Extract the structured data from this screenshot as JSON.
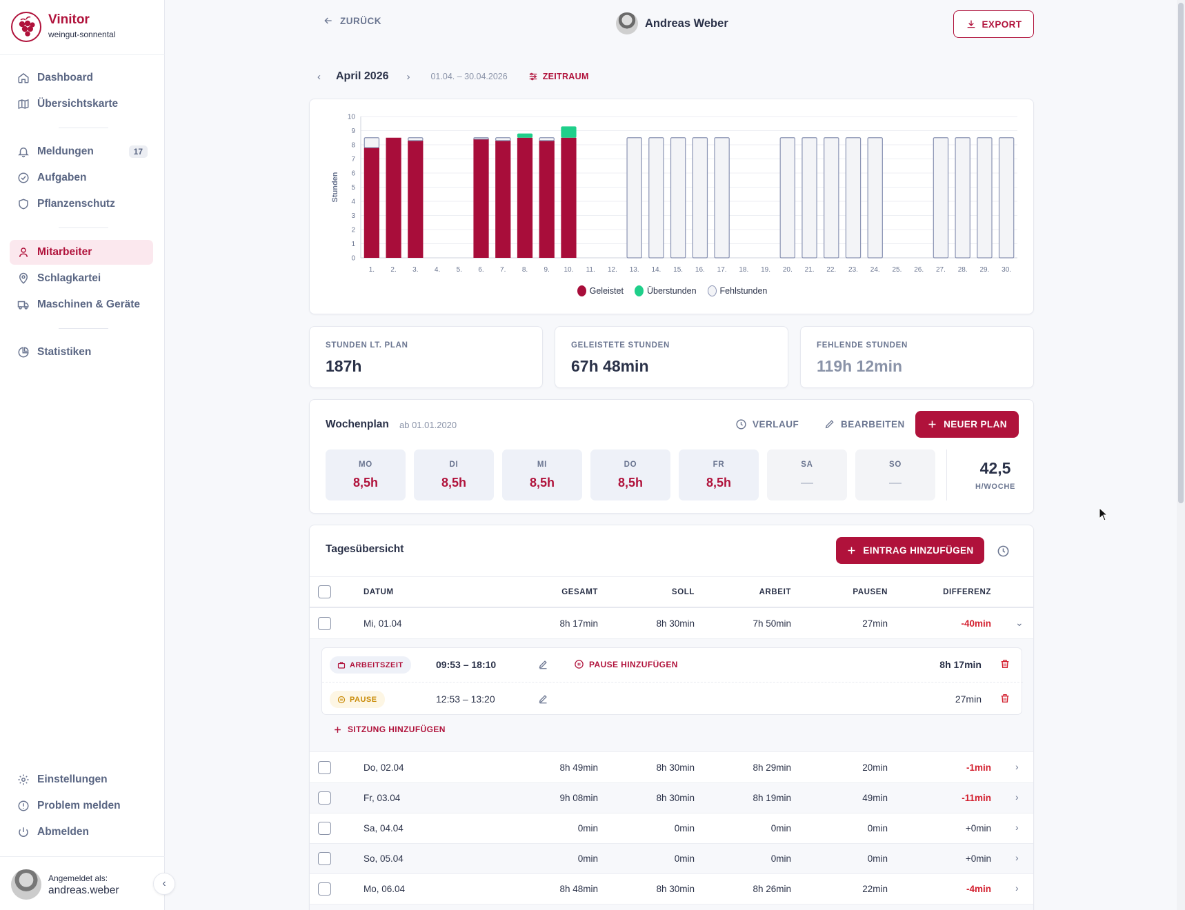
{
  "app": {
    "name": "Vinitor",
    "tenant": "weingut-sonnental"
  },
  "colors": {
    "brand": "#b0123b",
    "worked": "#a80d3a",
    "overtime": "#1fcf8a",
    "missing_fill": "#f3f4f7",
    "missing_stroke": "#8a93b3",
    "negative": "#d3202f"
  },
  "sidebar": {
    "items": [
      {
        "label": "Dashboard",
        "icon": "home-icon"
      },
      {
        "label": "Übersichtskarte",
        "icon": "map-icon"
      },
      {
        "label": "Meldungen",
        "icon": "bell-icon",
        "badge": "17"
      },
      {
        "label": "Aufgaben",
        "icon": "check-circle-icon"
      },
      {
        "label": "Pflanzenschutz",
        "icon": "shield-icon"
      },
      {
        "label": "Mitarbeiter",
        "icon": "user-icon",
        "active": true
      },
      {
        "label": "Schlagkartei",
        "icon": "map-pin-icon"
      },
      {
        "label": "Maschinen & Geräte",
        "icon": "truck-icon"
      },
      {
        "label": "Statistiken",
        "icon": "pie-chart-icon"
      },
      {
        "label": "Einstellungen",
        "icon": "gear-icon"
      },
      {
        "label": "Problem melden",
        "icon": "alert-circle-icon"
      },
      {
        "label": "Abmelden",
        "icon": "power-icon"
      }
    ],
    "footer": {
      "logged_in_label": "Angemeldet als:",
      "username": "andreas.weber"
    }
  },
  "header": {
    "back_label": "ZURÜCK",
    "person_name": "Andreas Weber",
    "export_label": "EXPORT"
  },
  "period": {
    "month": "April 2026",
    "range": "01.04. – 30.04.2026",
    "zeitraum_label": "ZEITRAUM"
  },
  "chart_data": {
    "type": "bar",
    "stacked": true,
    "ylabel": "Stunden",
    "ylim": [
      0,
      10
    ],
    "yticks": [
      0,
      1,
      2,
      3,
      4,
      5,
      6,
      7,
      8,
      9,
      10
    ],
    "grid": true,
    "legend_position": "bottom-center",
    "categories": [
      "1.",
      "2.",
      "3.",
      "4.",
      "5.",
      "6.",
      "7.",
      "8.",
      "9.",
      "10.",
      "11.",
      "12.",
      "13.",
      "14.",
      "15.",
      "16.",
      "17.",
      "18.",
      "19.",
      "20.",
      "21.",
      "22.",
      "23.",
      "24.",
      "25.",
      "26.",
      "27.",
      "28.",
      "29.",
      "30."
    ],
    "series": [
      {
        "name": "Geleistet",
        "values": [
          7.8,
          8.5,
          8.3,
          0,
          0,
          8.4,
          8.3,
          8.5,
          8.3,
          8.5,
          0,
          0,
          0,
          0,
          0,
          0,
          0,
          0,
          0,
          0,
          0,
          0,
          0,
          0,
          0,
          0,
          0,
          0,
          0,
          0
        ]
      },
      {
        "name": "Überstunden",
        "values": [
          0,
          0,
          0,
          0,
          0,
          0,
          0,
          0.3,
          0,
          0.8,
          0,
          0,
          0,
          0,
          0,
          0,
          0,
          0,
          0,
          0,
          0,
          0,
          0,
          0,
          0,
          0,
          0,
          0,
          0,
          0
        ]
      },
      {
        "name": "Fehlstunden",
        "values": [
          0.7,
          0,
          0.2,
          0,
          0,
          0.1,
          0.2,
          0,
          0.2,
          0,
          0,
          0,
          8.5,
          8.5,
          8.5,
          8.5,
          8.5,
          0,
          0,
          8.5,
          8.5,
          8.5,
          8.5,
          8.5,
          0,
          0,
          8.5,
          8.5,
          8.5,
          8.5
        ]
      }
    ]
  },
  "stats": [
    {
      "label": "STUNDEN LT. PLAN",
      "value": "187h"
    },
    {
      "label": "GELEISTETE STUNDEN",
      "value": "67h 48min"
    },
    {
      "label": "FEHLENDE STUNDEN",
      "value": "119h 12min"
    }
  ],
  "weekplan": {
    "title": "Wochenplan",
    "since": "ab 01.01.2020",
    "history_label": "VERLAUF",
    "edit_label": "BEARBEITEN",
    "new_label": "NEUER PLAN",
    "days": [
      {
        "name": "MO",
        "hours": "8,5h"
      },
      {
        "name": "DI",
        "hours": "8,5h"
      },
      {
        "name": "MI",
        "hours": "8,5h"
      },
      {
        "name": "DO",
        "hours": "8,5h"
      },
      {
        "name": "FR",
        "hours": "8,5h"
      },
      {
        "name": "SA",
        "hours": "—"
      },
      {
        "name": "SO",
        "hours": "—"
      }
    ],
    "total": "42,5",
    "total_unit": "H/WOCHE"
  },
  "daily": {
    "title": "Tagesübersicht",
    "add_entry_label": "EINTRAG HINZUFÜGEN",
    "columns": [
      "DATUM",
      "GESAMT",
      "SOLL",
      "ARBEIT",
      "PAUSEN",
      "DIFFERENZ"
    ],
    "rows": [
      {
        "date": "Mi, 01.04",
        "gesamt": "8h 17min",
        "soll": "8h 30min",
        "arbeit": "7h 50min",
        "pausen": "27min",
        "diff": "-40min"
      },
      {
        "date": "Do, 02.04",
        "gesamt": "8h 49min",
        "soll": "8h 30min",
        "arbeit": "8h 29min",
        "pausen": "20min",
        "diff": "-1min"
      },
      {
        "date": "Fr, 03.04",
        "gesamt": "9h 08min",
        "soll": "8h 30min",
        "arbeit": "8h 19min",
        "pausen": "49min",
        "diff": "-11min"
      },
      {
        "date": "Sa, 04.04",
        "gesamt": "0min",
        "soll": "0min",
        "arbeit": "0min",
        "pausen": "0min",
        "diff": "+0min"
      },
      {
        "date": "So, 05.04",
        "gesamt": "0min",
        "soll": "0min",
        "arbeit": "0min",
        "pausen": "0min",
        "diff": "+0min"
      },
      {
        "date": "Mo, 06.04",
        "gesamt": "8h 48min",
        "soll": "8h 30min",
        "arbeit": "8h 26min",
        "pausen": "22min",
        "diff": "-4min"
      }
    ],
    "detail": {
      "work_tag": "ARBEITSZEIT",
      "work_time": "09:53 – 18:10",
      "add_pause_label": "PAUSE HINZUFÜGEN",
      "work_duration": "8h 17min",
      "pause_tag": "PAUSE",
      "pause_time": "12:53 – 13:20",
      "pause_duration": "27min",
      "add_session_label": "SITZUNG HINZUFÜGEN"
    }
  }
}
